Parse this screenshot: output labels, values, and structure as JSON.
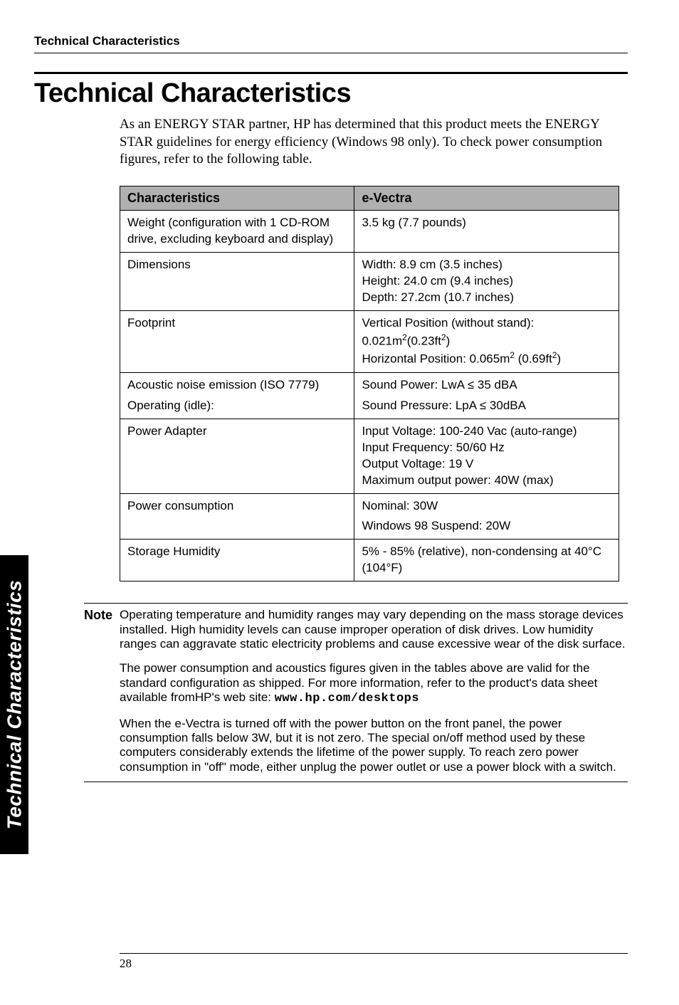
{
  "running_head": "Technical Characteristics",
  "title": "Technical Characteristics",
  "intro": "As an ENERGY STAR partner, HP has determined that this product meets the ENERGY STAR guidelines for energy efficiency (Windows 98 only). To check power consumption figures, refer to the following table.",
  "table": {
    "header_left": "Characteristics",
    "header_right": "e-Vectra",
    "rows": [
      {
        "label": "Weight (configuration with 1 CD-ROM drive, excluding keyboard and display)",
        "value": "3.5 kg (7.7 pounds)"
      },
      {
        "label": "Dimensions",
        "value": "Width: 8.9 cm (3.5 inches)\nHeight: 24.0 cm (9.4 inches)\nDepth: 27.2cm (10.7 inches)"
      },
      {
        "label": "Footprint",
        "value_html": "Vertical Position (without stand): 0.021m<sup>2</sup>(0.23ft<sup>2</sup>)\nHorizontal Position: 0.065m<sup>2</sup> (0.69ft<sup>2</sup>)"
      },
      {
        "label": "Acoustic noise emission (ISO  7779)\nOperating (idle):",
        "value": "Sound Power: LwA ≤ 35 dBA\nSound Pressure: LpA ≤ 30dBA",
        "line_gap": true
      },
      {
        "label": "Power Adapter",
        "value": "Input Voltage: 100-240 Vac (auto-range)\nInput Frequency: 50/60 Hz\nOutput Voltage: 19 V\nMaximum output power: 40W (max)"
      },
      {
        "label": "Power consumption",
        "value": "Nominal: 30W\nWindows 98 Suspend: 20W",
        "line_gap": true
      },
      {
        "label": "Storage Humidity",
        "value": "5% - 85% (relative), non-condensing at 40°C (104°F)"
      }
    ]
  },
  "note": {
    "label": "Note",
    "p1": "Operating temperature and humidity ranges may vary depending on the mass storage devices installed. High humidity levels can cause improper operation of disk drives. Low humidity ranges can aggravate static electricity problems and cause excessive wear of the disk surface.",
    "p2_pre": "The power consumption and acoustics figures given in the tables above are valid for the standard configuration as shipped. For more information, refer to the product's data sheet available fromHP's web site: ",
    "p2_url": "www.hp.com/desktops",
    "p3": "When the e-Vectra is turned off with the power button on the front panel, the power consumption falls below 3W, but it is not zero. The special on/off method used by these computers considerably extends the lifetime of the power supply. To reach zero power consumption in \"off\" mode, either unplug the power outlet or use a power block with a switch."
  },
  "side_tab": "Technical Characteristics",
  "page_number": "28"
}
